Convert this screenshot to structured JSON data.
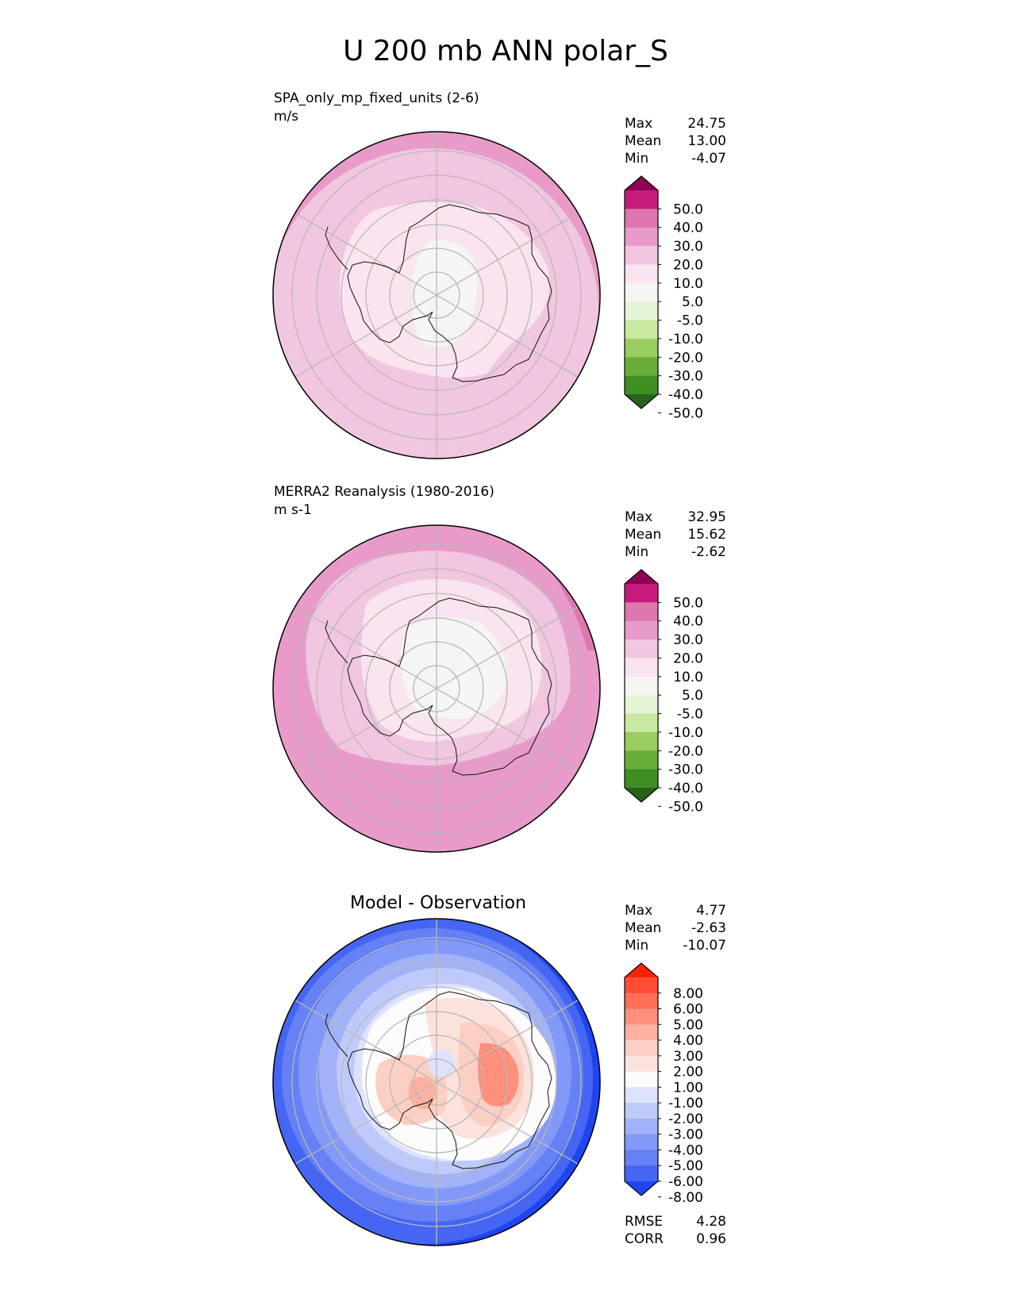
{
  "title": "U 200 mb ANN polar_S",
  "chart_data": [
    {
      "type": "polar_contour_map",
      "title": "SPA_only_mp_fixed_units (2-6)",
      "units": "m/s",
      "projection": "south polar stereographic",
      "stats": [
        {
          "label": "Max",
          "value": "24.75"
        },
        {
          "label": "Mean",
          "value": "13.00"
        },
        {
          "label": "Min",
          "value": "-4.07"
        }
      ],
      "colorbar": {
        "extend": "both",
        "ticks": [
          "50.0",
          "40.0",
          "30.0",
          "20.0",
          "10.0",
          "5.0",
          "-5.0",
          "-10.0",
          "-20.0",
          "-30.0",
          "-40.0",
          "-50.0"
        ],
        "colors": [
          "#8e0152",
          "#c51b7d",
          "#de77ae",
          "#e89bc8",
          "#f1c6e0",
          "#f9e4ef",
          "#f5f5f3",
          "#e6f4d6",
          "#c9e8a1",
          "#9acd5f",
          "#6aae3a",
          "#3e8e24",
          "#276419"
        ]
      },
      "regions": [
        {
          "level_color": "#e89bc8",
          "r": 1.0
        },
        {
          "level_color": "#f1c6e0",
          "r": 0.9
        },
        {
          "level_color": "#f9e4ef",
          "r": 0.56
        },
        {
          "level_color": "#f5f5f3",
          "r": 0.28
        }
      ]
    },
    {
      "type": "polar_contour_map",
      "title": "MERRA2 Reanalysis (1980-2016)",
      "units": "m s-1",
      "projection": "south polar stereographic",
      "stats": [
        {
          "label": "Max",
          "value": "32.95"
        },
        {
          "label": "Mean",
          "value": "15.62"
        },
        {
          "label": "Min",
          "value": "-2.62"
        }
      ],
      "colorbar": {
        "extend": "both",
        "ticks": [
          "50.0",
          "40.0",
          "30.0",
          "20.0",
          "10.0",
          "5.0",
          "-5.0",
          "-10.0",
          "-20.0",
          "-30.0",
          "-40.0",
          "-50.0"
        ],
        "colors": [
          "#8e0152",
          "#c51b7d",
          "#de77ae",
          "#e89bc8",
          "#f1c6e0",
          "#f9e4ef",
          "#f5f5f3",
          "#e6f4d6",
          "#c9e8a1",
          "#9acd5f",
          "#6aae3a",
          "#3e8e24",
          "#276419"
        ]
      },
      "regions": [
        {
          "level_color": "#e89bc8",
          "r": 1.0
        },
        {
          "level_color": "#f1c6e0",
          "r": 0.72
        },
        {
          "level_color": "#f9e4ef",
          "r": 0.6
        },
        {
          "level_color": "#f5f5f3",
          "r": 0.38
        }
      ]
    },
    {
      "type": "polar_contour_map",
      "title": "Model - Observation",
      "units": "",
      "projection": "south polar stereographic",
      "stats": [
        {
          "label": "Max",
          "value": "4.77"
        },
        {
          "label": "Mean",
          "value": "-2.63"
        },
        {
          "label": "Min",
          "value": "-10.07"
        }
      ],
      "extra_stats": [
        {
          "label": "RMSE",
          "value": "4.28"
        },
        {
          "label": "CORR",
          "value": "0.96"
        }
      ],
      "colorbar": {
        "extend": "both",
        "ticks": [
          "8.00",
          "6.00",
          "5.00",
          "4.00",
          "3.00",
          "2.00",
          "1.00",
          "-1.00",
          "-2.00",
          "-3.00",
          "-4.00",
          "-5.00",
          "-6.00",
          "-8.00"
        ],
        "colors": [
          "#ff2200",
          "#ff4d33",
          "#ff6e57",
          "#ff907c",
          "#fdb1a1",
          "#fccfc4",
          "#fbe3dc",
          "#fcfcfc",
          "#dde3fc",
          "#bfcafb",
          "#a1b2f9",
          "#8399f7",
          "#6680f5",
          "#4466f3",
          "#1f45f0"
        ]
      },
      "regions": [
        {
          "level_color": "#1f45f0",
          "r": 1.0
        },
        {
          "level_color": "#4466f3",
          "r": 0.95
        },
        {
          "level_color": "#8399f7",
          "r": 0.85
        },
        {
          "level_color": "#bfcafb",
          "r": 0.72
        },
        {
          "level_color": "#fcfcfc",
          "r": 0.6
        }
      ]
    }
  ]
}
